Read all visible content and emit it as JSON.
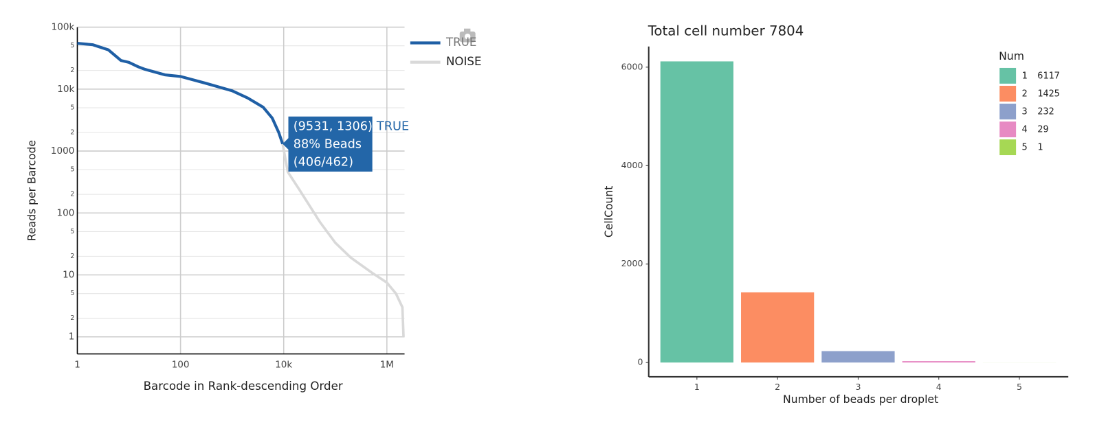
{
  "chart_data": [
    {
      "type": "line",
      "log_x": true,
      "log_y": true,
      "grid": true,
      "legend": "right-top",
      "xlabel": "Barcode in Rank-descending Order",
      "ylabel": "Reads per Barcode",
      "xlim": [
        1,
        2200000
      ],
      "ylim": [
        0.53,
        100000
      ],
      "xticks": [
        1,
        100,
        {
          "value": 10000,
          "label": "10k"
        },
        {
          "value": 1000000,
          "label": "1M"
        }
      ],
      "yticks": [
        1,
        {
          "value": 2,
          "label": "2"
        },
        {
          "value": 5,
          "label": "5"
        },
        10,
        {
          "value": 20,
          "label": "2"
        },
        {
          "value": 50,
          "label": "5"
        },
        100,
        {
          "value": 200,
          "label": "2"
        },
        {
          "value": 500,
          "label": "5"
        },
        1000,
        {
          "value": 2000,
          "label": "2"
        },
        {
          "value": 5000,
          "label": "5"
        },
        {
          "value": 10000,
          "label": "10k"
        },
        {
          "value": 20000,
          "label": "2"
        },
        {
          "value": 50000,
          "label": "5"
        },
        {
          "value": 100000,
          "label": "100k"
        }
      ],
      "series": [
        {
          "name": "TRUE",
          "color": "#1f5fa5",
          "x": [
            1,
            2,
            4,
            7,
            10,
            15,
            20,
            50,
            100,
            300,
            1000,
            2000,
            4000,
            6000,
            8000,
            9531
          ],
          "values": [
            55000,
            52000,
            43000,
            29000,
            27000,
            23000,
            21000,
            17000,
            16000,
            12500,
            9400,
            7200,
            5100,
            3400,
            2000,
            1306
          ]
        },
        {
          "name": "NOISE",
          "color": "#d9d9d9",
          "x": [
            9531,
            12000,
            20000,
            50000,
            100000,
            200000,
            500000,
            1000000,
            1500000,
            2000000,
            2100000
          ],
          "values": [
            1306,
            460,
            240,
            72,
            33,
            19,
            11,
            7.5,
            5,
            3,
            1
          ]
        }
      ],
      "annotation": {
        "lines": [
          "(9531, 1306)",
          "88% Beads",
          "(406/462)"
        ]
      }
    },
    {
      "type": "bar",
      "title": "Total cell number 7804",
      "xlabel": "Number of beads per droplet",
      "ylabel": "CellCount",
      "categories": [
        "1",
        "2",
        "3",
        "4",
        "5"
      ],
      "values": [
        6117,
        1425,
        232,
        29,
        1
      ],
      "colors": [
        "#66c2a5",
        "#fc8d62",
        "#8da0cb",
        "#e78ac3",
        "#a6d854"
      ],
      "ylim": [
        -290,
        6420
      ],
      "yticks": [
        0,
        2000,
        4000,
        6000
      ],
      "legend_title": "Num",
      "legend": "right-top"
    }
  ]
}
